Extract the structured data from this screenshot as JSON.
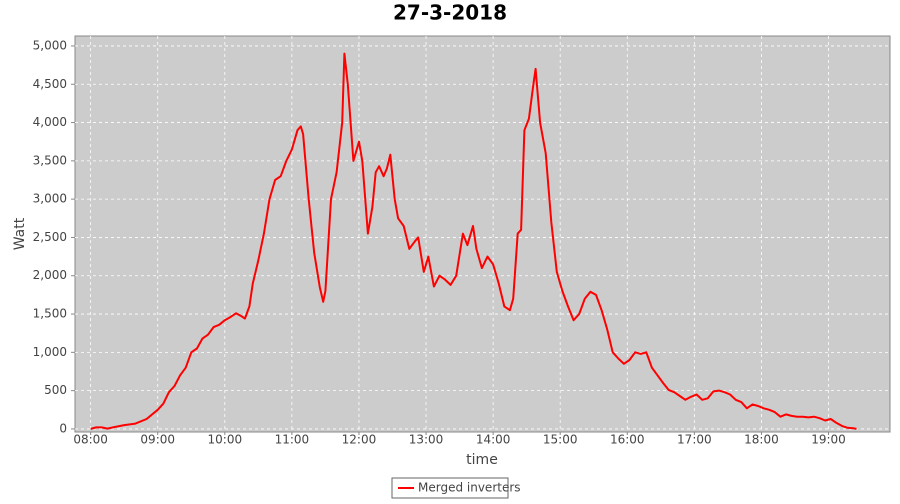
{
  "chart_data": {
    "type": "line",
    "title": "27-3-2018",
    "x_label": "time",
    "y_label": "Watt",
    "x": [
      "08:00",
      "08:05",
      "08:10",
      "08:15",
      "08:20",
      "08:30",
      "08:40",
      "08:50",
      "09:00",
      "09:05",
      "09:10",
      "09:15",
      "09:20",
      "09:25",
      "09:30",
      "09:35",
      "09:40",
      "09:45",
      "09:50",
      "09:55",
      "10:00",
      "10:05",
      "10:10",
      "10:15",
      "10:18",
      "10:22",
      "10:25",
      "10:30",
      "10:35",
      "10:40",
      "10:45",
      "10:50",
      "10:55",
      "11:00",
      "11:05",
      "11:08",
      "11:10",
      "11:15",
      "11:20",
      "11:25",
      "11:28",
      "11:30",
      "11:35",
      "11:40",
      "11:45",
      "11:47",
      "11:50",
      "11:55",
      "12:00",
      "12:03",
      "12:08",
      "12:12",
      "12:15",
      "12:18",
      "12:22",
      "12:25",
      "12:28",
      "12:32",
      "12:35",
      "12:40",
      "12:45",
      "12:50",
      "12:53",
      "12:58",
      "13:02",
      "13:07",
      "13:12",
      "13:17",
      "13:22",
      "13:27",
      "13:33",
      "13:37",
      "13:42",
      "13:45",
      "13:50",
      "13:55",
      "14:00",
      "14:05",
      "14:10",
      "14:15",
      "14:18",
      "14:22",
      "14:25",
      "14:28",
      "14:32",
      "14:36",
      "14:38",
      "14:42",
      "14:47",
      "14:52",
      "14:57",
      "15:02",
      "15:07",
      "15:12",
      "15:17",
      "15:22",
      "15:27",
      "15:32",
      "15:37",
      "15:42",
      "15:47",
      "15:52",
      "15:57",
      "16:02",
      "16:07",
      "16:12",
      "16:17",
      "16:22",
      "16:27",
      "16:32",
      "16:37",
      "16:42",
      "16:47",
      "16:52",
      "16:57",
      "17:02",
      "17:07",
      "17:12",
      "17:17",
      "17:22",
      "17:27",
      "17:32",
      "17:37",
      "17:42",
      "17:47",
      "17:52",
      "17:57",
      "18:02",
      "18:07",
      "18:12",
      "18:17",
      "18:22",
      "18:27",
      "18:32",
      "18:37",
      "18:42",
      "18:47",
      "18:52",
      "18:57",
      "19:02",
      "19:07",
      "19:12",
      "19:17",
      "19:22",
      "19:25"
    ],
    "series": [
      {
        "name": "Merged inverters",
        "color": "#ff0000",
        "values": [
          0,
          20,
          20,
          5,
          20,
          50,
          70,
          130,
          250,
          330,
          480,
          560,
          700,
          800,
          1000,
          1050,
          1180,
          1230,
          1330,
          1360,
          1420,
          1460,
          1510,
          1470,
          1440,
          1600,
          1900,
          2200,
          2550,
          3000,
          3250,
          3300,
          3500,
          3650,
          3900,
          3950,
          3850,
          3000,
          2300,
          1850,
          1660,
          1800,
          3000,
          3350,
          4000,
          4900,
          4500,
          3500,
          3750,
          3500,
          2550,
          2900,
          3350,
          3430,
          3300,
          3400,
          3580,
          3000,
          2750,
          2650,
          2350,
          2450,
          2500,
          2050,
          2250,
          1860,
          2000,
          1950,
          1880,
          2000,
          2550,
          2400,
          2650,
          2350,
          2100,
          2250,
          2150,
          1900,
          1600,
          1550,
          1700,
          2550,
          2600,
          3900,
          4050,
          4500,
          4700,
          4000,
          3600,
          2700,
          2050,
          1800,
          1600,
          1420,
          1500,
          1700,
          1790,
          1750,
          1550,
          1300,
          1000,
          920,
          850,
          900,
          1000,
          980,
          1000,
          800,
          700,
          600,
          510,
          480,
          430,
          380,
          420,
          450,
          380,
          400,
          490,
          500,
          480,
          450,
          380,
          350,
          270,
          320,
          300,
          270,
          250,
          220,
          160,
          190,
          170,
          160,
          160,
          150,
          160,
          140,
          110,
          130,
          80,
          40,
          15,
          10,
          0
        ]
      }
    ],
    "xlim": [
      "07:46",
      "19:55"
    ],
    "xticks": [
      "08:00",
      "09:00",
      "10:00",
      "11:00",
      "12:00",
      "13:00",
      "14:00",
      "15:00",
      "16:00",
      "17:00",
      "18:00",
      "19:00"
    ],
    "ylim": [
      -40,
      5130
    ],
    "yticks": [
      0,
      500,
      {
        "value": 1000,
        "label": "1,000"
      },
      {
        "value": 1500,
        "label": "1,500"
      },
      {
        "value": 2000,
        "label": "2,000"
      },
      {
        "value": 2500,
        "label": "2,500"
      },
      {
        "value": 3000,
        "label": "3,000"
      },
      {
        "value": 3500,
        "label": "3,500"
      },
      {
        "value": 4000,
        "label": "4,000"
      },
      {
        "value": 4500,
        "label": "4,500"
      },
      {
        "value": 5000,
        "label": "5,000"
      }
    ],
    "grid": true,
    "legend": "bottom"
  }
}
